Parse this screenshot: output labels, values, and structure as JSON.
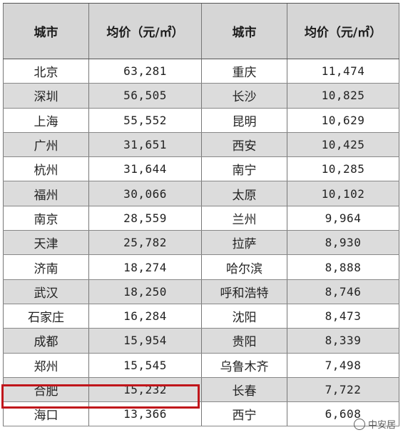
{
  "headers": [
    "城市",
    "均价（元/㎡）",
    "城市",
    "均价（元/㎡）"
  ],
  "rows": [
    [
      "北京",
      "63,281",
      "重庆",
      "11,474"
    ],
    [
      "深圳",
      "56,505",
      "长沙",
      "10,825"
    ],
    [
      "上海",
      "55,552",
      "昆明",
      "10,629"
    ],
    [
      "广州",
      "31,651",
      "西安",
      "10,425"
    ],
    [
      "杭州",
      "31,644",
      "南宁",
      "10,285"
    ],
    [
      "福州",
      "30,066",
      "太原",
      "10,102"
    ],
    [
      "南京",
      "28,559",
      "兰州",
      "9,964"
    ],
    [
      "天津",
      "25,782",
      "拉萨",
      "8,930"
    ],
    [
      "济南",
      "18,274",
      "哈尔滨",
      "8,888"
    ],
    [
      "武汉",
      "18,250",
      "呼和浩特",
      "8,746"
    ],
    [
      "石家庄",
      "16,284",
      "沈阳",
      "8,473"
    ],
    [
      "成都",
      "15,954",
      "贵阳",
      "8,339"
    ],
    [
      "郑州",
      "15,545",
      "乌鲁木齐",
      "7,498"
    ],
    [
      "合肥",
      "15,232",
      "长春",
      "7,722"
    ],
    [
      "海口",
      "13,366",
      "西宁",
      "6,608"
    ]
  ],
  "highlight_row_index": 13,
  "highlight_color": "#c0161b",
  "shade_color": "#dcdcdc",
  "watermark": {
    "text": "中安居",
    "icon": "chat-bubble-icon"
  }
}
